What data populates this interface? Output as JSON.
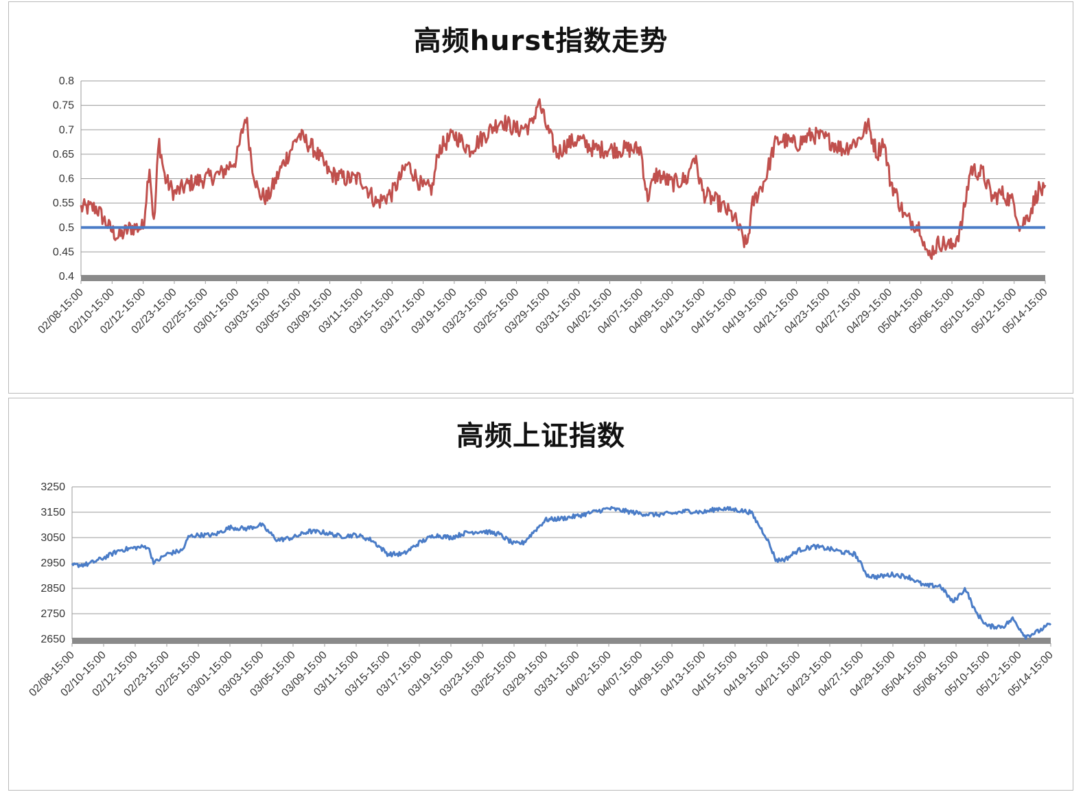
{
  "chart_data": [
    {
      "type": "line",
      "title": "高频hurst指数走势",
      "xlabel": "",
      "ylabel": "",
      "ylim": [
        0.4,
        0.8
      ],
      "yticks": [
        "0.4",
        "0.45",
        "0.5",
        "0.55",
        "0.6",
        "0.65",
        "0.7",
        "0.75",
        "0.8"
      ],
      "categories": [
        "02/08-15:00",
        "02/10-15:00",
        "02/12-15:00",
        "02/23-15:00",
        "02/25-15:00",
        "03/01-15:00",
        "03/03-15:00",
        "03/05-15:00",
        "03/09-15:00",
        "03/11-15:00",
        "03/15-15:00",
        "03/17-15:00",
        "03/19-15:00",
        "03/23-15:00",
        "03/25-15:00",
        "03/29-15:00",
        "03/31-15:00",
        "04/02-15:00",
        "04/07-15:00",
        "04/09-15:00",
        "04/13-15:00",
        "04/15-15:00",
        "04/19-15:00",
        "04/21-15:00",
        "04/23-15:00",
        "04/27-15:00",
        "04/29-15:00",
        "05/04-15:00",
        "05/06-15:00",
        "05/10-15:00",
        "05/12-15:00",
        "05/14-15:00"
      ],
      "grid": true,
      "series": [
        {
          "color": "#c0504d",
          "keypoints": [
            [
              0,
              0.54
            ],
            [
              0.5,
              0.54
            ],
            [
              0.9,
              0.5
            ],
            [
              1.2,
              0.48
            ],
            [
              1.6,
              0.5
            ],
            [
              2.0,
              0.5
            ],
            [
              2.2,
              0.63
            ],
            [
              2.35,
              0.5
            ],
            [
              2.5,
              0.68
            ],
            [
              2.7,
              0.6
            ],
            [
              3.0,
              0.57
            ],
            [
              3.5,
              0.59
            ],
            [
              4.0,
              0.6
            ],
            [
              4.5,
              0.61
            ],
            [
              5.0,
              0.64
            ],
            [
              5.3,
              0.73
            ],
            [
              5.5,
              0.63
            ],
            [
              5.7,
              0.57
            ],
            [
              6.0,
              0.56
            ],
            [
              6.5,
              0.63
            ],
            [
              7.0,
              0.69
            ],
            [
              7.5,
              0.66
            ],
            [
              8.0,
              0.61
            ],
            [
              8.5,
              0.6
            ],
            [
              9.0,
              0.6
            ],
            [
              9.5,
              0.55
            ],
            [
              10.0,
              0.57
            ],
            [
              10.5,
              0.63
            ],
            [
              11.0,
              0.58
            ],
            [
              11.3,
              0.58
            ],
            [
              11.5,
              0.66
            ],
            [
              12.0,
              0.69
            ],
            [
              12.5,
              0.66
            ],
            [
              13.0,
              0.69
            ],
            [
              13.5,
              0.72
            ],
            [
              14.0,
              0.7
            ],
            [
              14.5,
              0.71
            ],
            [
              14.7,
              0.76
            ],
            [
              15.0,
              0.7
            ],
            [
              15.3,
              0.65
            ],
            [
              15.6,
              0.67
            ],
            [
              16.0,
              0.68
            ],
            [
              16.5,
              0.66
            ],
            [
              17.0,
              0.66
            ],
            [
              17.5,
              0.66
            ],
            [
              18.0,
              0.66
            ],
            [
              18.2,
              0.56
            ],
            [
              18.5,
              0.61
            ],
            [
              19.0,
              0.59
            ],
            [
              19.5,
              0.6
            ],
            [
              19.7,
              0.65
            ],
            [
              20.0,
              0.57
            ],
            [
              20.5,
              0.55
            ],
            [
              21.0,
              0.52
            ],
            [
              21.4,
              0.46
            ],
            [
              21.6,
              0.55
            ],
            [
              22.0,
              0.6
            ],
            [
              22.3,
              0.67
            ],
            [
              22.5,
              0.68
            ],
            [
              23.0,
              0.67
            ],
            [
              23.5,
              0.69
            ],
            [
              24.0,
              0.68
            ],
            [
              24.5,
              0.66
            ],
            [
              25.0,
              0.68
            ],
            [
              25.3,
              0.71
            ],
            [
              25.6,
              0.65
            ],
            [
              25.8,
              0.68
            ],
            [
              26.0,
              0.6
            ],
            [
              26.5,
              0.52
            ],
            [
              27.0,
              0.5
            ],
            [
              27.2,
              0.44
            ],
            [
              27.6,
              0.47
            ],
            [
              28.0,
              0.46
            ],
            [
              28.3,
              0.5
            ],
            [
              28.6,
              0.62
            ],
            [
              29.0,
              0.61
            ],
            [
              29.3,
              0.56
            ],
            [
              29.6,
              0.57
            ],
            [
              30.0,
              0.55
            ],
            [
              30.2,
              0.5
            ],
            [
              30.5,
              0.53
            ],
            [
              30.8,
              0.58
            ],
            [
              31.0,
              0.57
            ]
          ]
        },
        {
          "name": "",
          "color": "#4a7cc7",
          "constant": 0.5
        }
      ]
    },
    {
      "type": "line",
      "title": "高频上证指数",
      "xlabel": "",
      "ylabel": "",
      "ylim": [
        2650,
        3250
      ],
      "yticks": [
        "2650",
        "2750",
        "2850",
        "2950",
        "3050",
        "3150",
        "3250"
      ],
      "categories": [
        "02/08-15:00",
        "02/10-15:00",
        "02/12-15:00",
        "02/23-15:00",
        "02/25-15:00",
        "03/01-15:00",
        "03/03-15:00",
        "03/05-15:00",
        "03/09-15:00",
        "03/11-15:00",
        "03/15-15:00",
        "03/17-15:00",
        "03/19-15:00",
        "03/23-15:00",
        "03/25-15:00",
        "03/29-15:00",
        "03/31-15:00",
        "04/02-15:00",
        "04/07-15:00",
        "04/09-15:00",
        "04/13-15:00",
        "04/15-15:00",
        "04/19-15:00",
        "04/21-15:00",
        "04/23-15:00",
        "04/27-15:00",
        "04/29-15:00",
        "05/04-15:00",
        "05/06-15:00",
        "05/10-15:00",
        "05/12-15:00",
        "05/14-15:00"
      ],
      "grid": true,
      "series": [
        {
          "color": "#4a7cc7",
          "keypoints": [
            [
              0,
              2940
            ],
            [
              0.5,
              2945
            ],
            [
              1.0,
              2970
            ],
            [
              1.5,
              3000
            ],
            [
              2.0,
              3010
            ],
            [
              2.4,
              3015
            ],
            [
              2.6,
              2950
            ],
            [
              3.0,
              2985
            ],
            [
              3.5,
              3000
            ],
            [
              3.7,
              3055
            ],
            [
              4.0,
              3060
            ],
            [
              4.5,
              3060
            ],
            [
              5.0,
              3090
            ],
            [
              5.5,
              3085
            ],
            [
              6.0,
              3100
            ],
            [
              6.5,
              3040
            ],
            [
              7.0,
              3050
            ],
            [
              7.5,
              3075
            ],
            [
              8.0,
              3070
            ],
            [
              8.5,
              3055
            ],
            [
              9.0,
              3060
            ],
            [
              9.5,
              3040
            ],
            [
              10.0,
              2985
            ],
            [
              10.5,
              2985
            ],
            [
              11.0,
              3030
            ],
            [
              11.5,
              3060
            ],
            [
              12.0,
              3050
            ],
            [
              12.5,
              3070
            ],
            [
              13.0,
              3075
            ],
            [
              13.5,
              3065
            ],
            [
              14.0,
              3025
            ],
            [
              14.3,
              3030
            ],
            [
              14.6,
              3070
            ],
            [
              15.0,
              3120
            ],
            [
              15.5,
              3125
            ],
            [
              16.0,
              3135
            ],
            [
              16.5,
              3150
            ],
            [
              17.0,
              3165
            ],
            [
              17.5,
              3155
            ],
            [
              18.0,
              3145
            ],
            [
              18.5,
              3140
            ],
            [
              19.0,
              3145
            ],
            [
              19.5,
              3155
            ],
            [
              20.0,
              3150
            ],
            [
              20.5,
              3165
            ],
            [
              21.0,
              3160
            ],
            [
              21.5,
              3150
            ],
            [
              22.0,
              3050
            ],
            [
              22.3,
              2960
            ],
            [
              22.6,
              2965
            ],
            [
              23.0,
              3000
            ],
            [
              23.5,
              3015
            ],
            [
              24.0,
              3005
            ],
            [
              24.5,
              2990
            ],
            [
              24.8,
              2985
            ],
            [
              25.2,
              2900
            ],
            [
              25.5,
              2895
            ],
            [
              26.0,
              2905
            ],
            [
              26.5,
              2895
            ],
            [
              27.0,
              2860
            ],
            [
              27.5,
              2860
            ],
            [
              27.9,
              2795
            ],
            [
              28.3,
              2850
            ],
            [
              28.6,
              2760
            ],
            [
              29.0,
              2700
            ],
            [
              29.5,
              2700
            ],
            [
              29.8,
              2730
            ],
            [
              30.2,
              2660
            ],
            [
              30.6,
              2680
            ],
            [
              31.0,
              2710
            ]
          ]
        }
      ]
    }
  ]
}
